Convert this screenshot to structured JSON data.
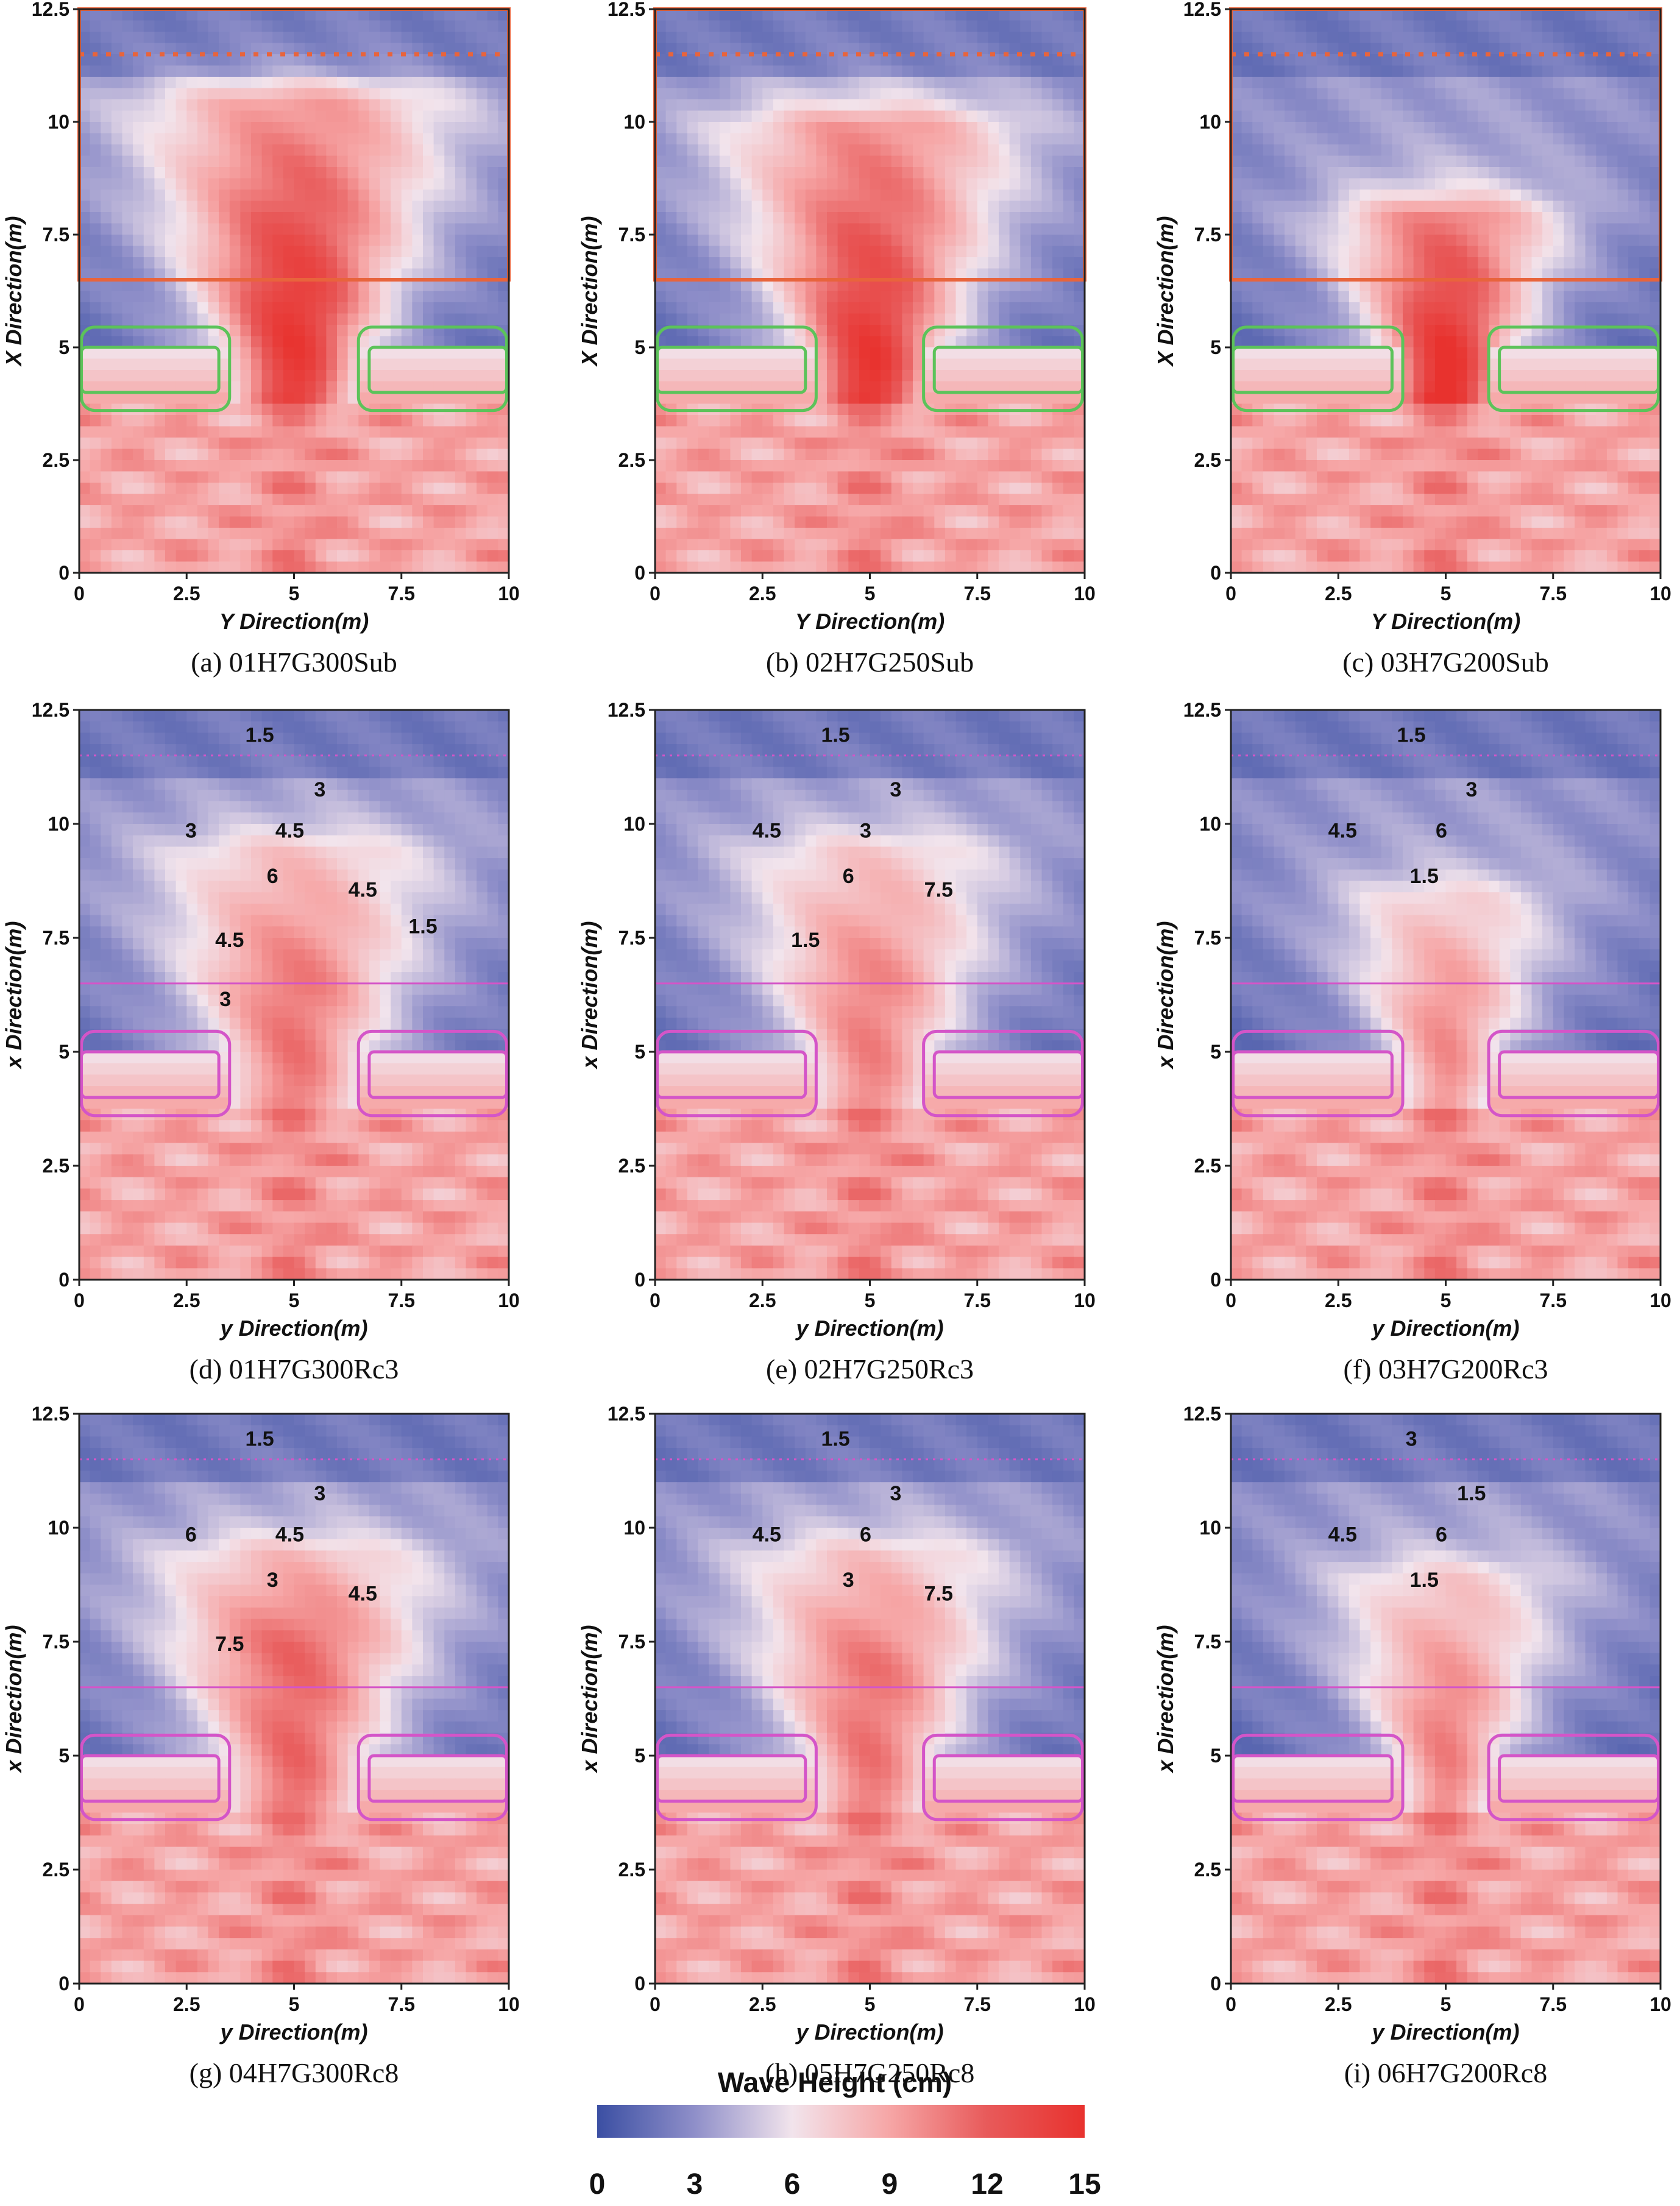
{
  "figure": {
    "colorbar": {
      "title": "Wave Height (cm)",
      "ticks": [
        0,
        3,
        6,
        9,
        12,
        15
      ],
      "colors": [
        "#3b4fa3",
        "#8f8fc9",
        "#f2e4ec",
        "#f6a6a6",
        "#e85a5a",
        "#e8322e"
      ]
    }
  },
  "chart_data": [
    {
      "type": "heatmap",
      "panel": "a",
      "caption": "(a)  01H7G300Sub",
      "title": "",
      "xlabel": "Y Direction(m)",
      "ylabel": "X Direction(m)",
      "xlim": [
        0,
        10
      ],
      "ylim": [
        0,
        12.5
      ],
      "xticks": [
        "0",
        "2.5",
        "5",
        "7.5",
        "10"
      ],
      "yticks": [
        "0",
        "2.5",
        "5",
        "7.5",
        "10",
        "12.5"
      ],
      "contour_labels": [],
      "overlay_color": "#e8643c",
      "gap_m": 3.0,
      "breakwater_rect": {
        "x": [
          0,
          10
        ],
        "y": [
          6.5,
          12.5
        ]
      },
      "dotted_line_y": 11.5,
      "structure_color": "#5cc35a",
      "peak_x_m": 6.0,
      "jet_width_m": 0.9,
      "jet_reach_m": 10.5,
      "peak_value_cm": 12.5
    },
    {
      "type": "heatmap",
      "panel": "b",
      "caption": "(b)  02H7G250Sub",
      "title": "",
      "xlabel": "Y Direction(m)",
      "ylabel": "X Direction(m)",
      "xlim": [
        0,
        10
      ],
      "ylim": [
        0,
        12.5
      ],
      "xticks": [
        "0",
        "2.5",
        "5",
        "7.5",
        "10"
      ],
      "yticks": [
        "0",
        "2.5",
        "5",
        "7.5",
        "10",
        "12.5"
      ],
      "contour_labels": [],
      "overlay_color": "#e8643c",
      "gap_m": 2.5,
      "breakwater_rect": {
        "x": [
          0,
          10
        ],
        "y": [
          6.5,
          12.5
        ]
      },
      "dotted_line_y": 11.5,
      "structure_color": "#5cc35a",
      "peak_x_m": 4.5,
      "jet_width_m": 0.9,
      "jet_reach_m": 10.0,
      "peak_value_cm": 13.0
    },
    {
      "type": "heatmap",
      "panel": "c",
      "caption": "(c)  03H7G200Sub",
      "title": "",
      "xlabel": "Y Direction(m)",
      "ylabel": "X Direction(m)",
      "xlim": [
        0,
        10
      ],
      "ylim": [
        0,
        12.5
      ],
      "xticks": [
        "0",
        "2.5",
        "5",
        "7.5",
        "10"
      ],
      "yticks": [
        "0",
        "2.5",
        "5",
        "7.5",
        "10",
        "12.5"
      ],
      "contour_labels": [],
      "overlay_color": "#e8643c",
      "gap_m": 2.0,
      "breakwater_rect": {
        "x": [
          0,
          10
        ],
        "y": [
          6.5,
          12.5
        ]
      },
      "dotted_line_y": 11.5,
      "structure_color": "#5cc35a",
      "peak_x_m": 3.8,
      "jet_width_m": 0.8,
      "jet_reach_m": 8.0,
      "peak_value_cm": 14.5
    },
    {
      "type": "heatmap",
      "panel": "d",
      "caption": "(d)  01H7G300Rc3",
      "title": "",
      "xlabel": "y Direction(m)",
      "ylabel": "x Direction(m)",
      "xlim": [
        0,
        10
      ],
      "ylim": [
        0,
        12.5
      ],
      "xticks": [
        "0",
        "2.5",
        "5",
        "7.5",
        "10"
      ],
      "yticks": [
        "0",
        "2.5",
        "5",
        "7.5",
        "10",
        "12.5"
      ],
      "contour_labels": [
        "1.5",
        "3",
        "3",
        "4.5",
        "6",
        "4.5",
        "4.5",
        "1.5",
        "3"
      ],
      "overlay_color": "#d455c8",
      "gap_m": 3.0,
      "breakwater_rect": {
        "x": [
          0,
          10
        ],
        "y": [
          6.5,
          12.5
        ]
      },
      "dotted_line_y": 11.5,
      "structure_color": "#d455c8",
      "peak_x_m": 6.5,
      "jet_width_m": 1.0,
      "jet_reach_m": 9.5,
      "peak_value_cm": 9.0
    },
    {
      "type": "heatmap",
      "panel": "e",
      "caption": "(e)  02H7G250Rc3",
      "title": "",
      "xlabel": "y Direction(m)",
      "ylabel": "x Direction(m)",
      "xlim": [
        0,
        10
      ],
      "ylim": [
        0,
        12.5
      ],
      "xticks": [
        "0",
        "2.5",
        "5",
        "7.5",
        "10"
      ],
      "yticks": [
        "0",
        "2.5",
        "5",
        "7.5",
        "10",
        "12.5"
      ],
      "contour_labels": [
        "1.5",
        "3",
        "4.5",
        "3",
        "6",
        "7.5",
        "1.5"
      ],
      "overlay_color": "#d455c8",
      "gap_m": 2.5,
      "breakwater_rect": {
        "x": [
          0,
          10
        ],
        "y": [
          6.5,
          12.5
        ]
      },
      "dotted_line_y": 11.5,
      "structure_color": "#d455c8",
      "peak_x_m": 6.5,
      "jet_width_m": 0.9,
      "jet_reach_m": 9.5,
      "peak_value_cm": 8.5
    },
    {
      "type": "heatmap",
      "panel": "f",
      "caption": "(f)  03H7G200Rc3",
      "title": "",
      "xlabel": "y Direction(m)",
      "ylabel": "x Direction(m)",
      "xlim": [
        0,
        10
      ],
      "ylim": [
        0,
        12.5
      ],
      "xticks": [
        "0",
        "2.5",
        "5",
        "7.5",
        "10"
      ],
      "yticks": [
        "0",
        "2.5",
        "5",
        "7.5",
        "10",
        "12.5"
      ],
      "contour_labels": [
        "1.5",
        "3",
        "4.5",
        "6",
        "1.5"
      ],
      "overlay_color": "#d455c8",
      "gap_m": 2.0,
      "breakwater_rect": {
        "x": [
          0,
          10
        ],
        "y": [
          6.5,
          12.5
        ]
      },
      "dotted_line_y": 11.5,
      "structure_color": "#d455c8",
      "peak_x_m": 6.0,
      "jet_width_m": 0.7,
      "jet_reach_m": 8.5,
      "peak_value_cm": 8.0
    },
    {
      "type": "heatmap",
      "panel": "g",
      "caption": "(g)  04H7G300Rc8",
      "title": "",
      "xlabel": "y Direction(m)",
      "ylabel": "x Direction(m)",
      "xlim": [
        0,
        10
      ],
      "ylim": [
        0,
        12.5
      ],
      "xticks": [
        "0",
        "2.5",
        "5",
        "7.5",
        "10"
      ],
      "yticks": [
        "0",
        "2.5",
        "5",
        "7.5",
        "10",
        "12.5"
      ],
      "contour_labels": [
        "1.5",
        "3",
        "6",
        "4.5",
        "3",
        "4.5",
        "7.5"
      ],
      "overlay_color": "#d455c8",
      "gap_m": 3.0,
      "breakwater_rect": {
        "x": [
          0,
          10
        ],
        "y": [
          6.5,
          12.5
        ]
      },
      "dotted_line_y": 11.5,
      "structure_color": "#d455c8",
      "peak_x_m": 7.5,
      "jet_width_m": 1.0,
      "jet_reach_m": 9.5,
      "peak_value_cm": 9.5
    },
    {
      "type": "heatmap",
      "panel": "h",
      "caption": "(h)  05H7G250Rc8",
      "title": "",
      "xlabel": "y Direction(m)",
      "ylabel": "x Direction(m)",
      "xlim": [
        0,
        10
      ],
      "ylim": [
        0,
        12.5
      ],
      "xticks": [
        "0",
        "2.5",
        "5",
        "7.5",
        "10"
      ],
      "yticks": [
        "0",
        "2.5",
        "5",
        "7.5",
        "10",
        "12.5"
      ],
      "contour_labels": [
        "1.5",
        "3",
        "4.5",
        "6",
        "3",
        "7.5"
      ],
      "overlay_color": "#d455c8",
      "gap_m": 2.5,
      "breakwater_rect": {
        "x": [
          0,
          10
        ],
        "y": [
          6.5,
          12.5
        ]
      },
      "dotted_line_y": 11.5,
      "structure_color": "#d455c8",
      "peak_x_m": 7.0,
      "jet_width_m": 0.9,
      "jet_reach_m": 9.5,
      "peak_value_cm": 9.0
    },
    {
      "type": "heatmap",
      "panel": "i",
      "caption": "(i)  06H7G200Rc8",
      "title": "",
      "xlabel": "y Direction(m)",
      "ylabel": "x Direction(m)",
      "xlim": [
        0,
        10
      ],
      "ylim": [
        0,
        12.5
      ],
      "xticks": [
        "0",
        "2.5",
        "5",
        "7.5",
        "10"
      ],
      "yticks": [
        "0",
        "2.5",
        "5",
        "7.5",
        "10",
        "12.5"
      ],
      "contour_labels": [
        "3",
        "1.5",
        "4.5",
        "6",
        "1.5"
      ],
      "overlay_color": "#d455c8",
      "gap_m": 2.0,
      "breakwater_rect": {
        "x": [
          0,
          10
        ],
        "y": [
          6.5,
          12.5
        ]
      },
      "dotted_line_y": 11.5,
      "structure_color": "#d455c8",
      "peak_x_m": 6.0,
      "jet_width_m": 0.7,
      "jet_reach_m": 9.0,
      "peak_value_cm": 8.5
    }
  ]
}
